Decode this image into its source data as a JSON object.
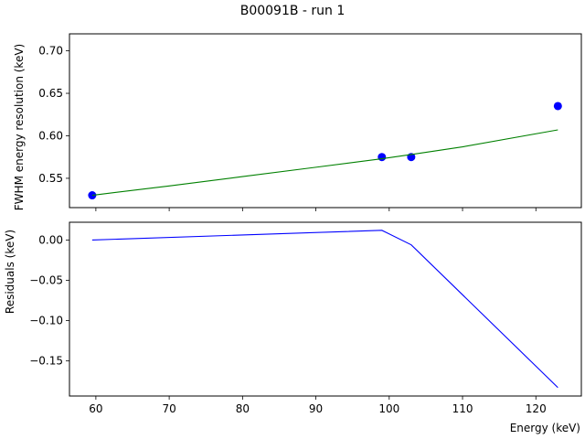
{
  "chart_data": [
    {
      "type": "scatter",
      "title": "B00091B - run 1",
      "xlabel": "",
      "ylabel": "FWHM energy resolution (keV)",
      "xlim": [
        56.4,
        126.2
      ],
      "ylim": [
        0.5155,
        0.72
      ],
      "xticks": [
        60,
        70,
        80,
        90,
        100,
        110,
        120
      ],
      "xtick_labels_visible": false,
      "yticks": [
        0.55,
        0.6,
        0.65,
        0.7
      ],
      "ytick_labels": [
        "0.55",
        "0.60",
        "0.65",
        "0.70"
      ],
      "grid": false,
      "series": [
        {
          "mode": "markers",
          "color": "#0000ff",
          "x": [
            59.5,
            99.0,
            103.0,
            123.0
          ],
          "y": [
            0.53,
            0.575,
            0.575,
            0.635
          ]
        },
        {
          "mode": "line",
          "color": "#008000",
          "x": [
            59.5,
            70,
            80,
            90,
            99.0,
            103.0,
            110,
            123.0
          ],
          "y": [
            0.53,
            0.541,
            0.552,
            0.563,
            0.573,
            0.578,
            0.587,
            0.607
          ]
        }
      ]
    },
    {
      "type": "line",
      "title": "",
      "xlabel": "Energy (keV)",
      "ylabel": "Residuals (keV)",
      "xlim": [
        56.4,
        126.2
      ],
      "ylim": [
        -0.1935,
        0.022
      ],
      "xticks": [
        60,
        70,
        80,
        90,
        100,
        110,
        120
      ],
      "xtick_labels": [
        "60",
        "70",
        "80",
        "90",
        "100",
        "110",
        "120"
      ],
      "yticks": [
        0.0,
        -0.05,
        -0.1,
        -0.15
      ],
      "ytick_labels": [
        "0.00",
        "−0.05",
        "−0.10",
        "−0.15"
      ],
      "grid": false,
      "series": [
        {
          "mode": "line",
          "color": "#0000ff",
          "x": [
            59.5,
            99.0,
            103.0,
            123.0
          ],
          "y": [
            0.0,
            0.012,
            -0.006,
            -0.183
          ]
        }
      ]
    }
  ]
}
